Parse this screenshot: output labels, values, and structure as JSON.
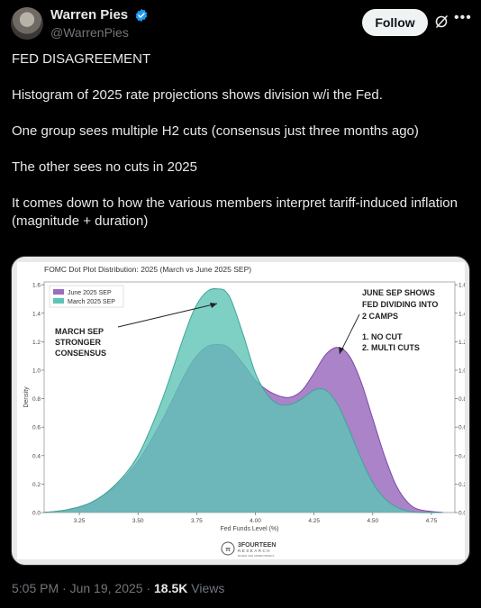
{
  "author": {
    "display_name": "Warren Pies",
    "handle": "@WarrenPies",
    "avatar_icon": "avatar-photo",
    "verified_icon": "verified-badge-icon"
  },
  "actions": {
    "follow_label": "Follow",
    "grok_icon": "grok-icon",
    "more_icon": "more-icon"
  },
  "tweet": {
    "lines": [
      "FED DISAGREEMENT",
      "Histogram of 2025 rate projections shows division w/i the Fed.",
      "One group sees multiple H2 cuts (consensus just three months ago)",
      "The other sees no cuts in 2025",
      "It comes down to how the various members interpret tariff-induced inflation (magnitude + duration)"
    ]
  },
  "footer": {
    "time": "5:05 PM",
    "date": "Jun 19, 2025",
    "separator": "·",
    "views_count": "18.5K",
    "views_label": "Views"
  },
  "chart_data": {
    "type": "area",
    "title": "FOMC Dot Plot Distribution: 2025 (March vs June 2025 SEP)",
    "xlabel": "Fed Funds Level (%)",
    "ylabel": "Density",
    "xlim": [
      3.1,
      4.85
    ],
    "ylim": [
      0,
      1.62
    ],
    "x_ticks": [
      "3.25",
      "3.50",
      "3.75",
      "4.00",
      "4.25",
      "4.50",
      "4.75"
    ],
    "y_ticks": [
      "0.0",
      "0.2",
      "0.4",
      "0.6",
      "0.8",
      "1.0",
      "1.2",
      "1.4",
      "1.6"
    ],
    "legend_position": "top-left",
    "series": [
      {
        "name": "June 2025 SEP",
        "color": "#9b6dc0",
        "x": [
          3.1,
          3.2,
          3.3,
          3.4,
          3.5,
          3.6,
          3.7,
          3.75,
          3.8,
          3.85,
          3.875,
          3.9,
          3.95,
          4.0,
          4.05,
          4.1,
          4.15,
          4.2,
          4.25,
          4.3,
          4.35,
          4.4,
          4.45,
          4.5,
          4.55,
          4.6,
          4.65,
          4.7,
          4.8
        ],
        "values": [
          0.0,
          0.02,
          0.07,
          0.18,
          0.36,
          0.64,
          0.97,
          1.1,
          1.17,
          1.18,
          1.17,
          1.14,
          1.04,
          0.93,
          0.86,
          0.82,
          0.81,
          0.86,
          0.98,
          1.11,
          1.16,
          1.1,
          0.92,
          0.66,
          0.4,
          0.19,
          0.07,
          0.02,
          0.0
        ]
      },
      {
        "name": "March 2025 SEP",
        "color": "#5ec4b6",
        "x": [
          3.1,
          3.2,
          3.3,
          3.4,
          3.5,
          3.6,
          3.7,
          3.75,
          3.8,
          3.85,
          3.875,
          3.9,
          3.95,
          4.0,
          4.05,
          4.1,
          4.15,
          4.2,
          4.25,
          4.3,
          4.35,
          4.4,
          4.45,
          4.5,
          4.55,
          4.6,
          4.65,
          4.7,
          4.8
        ],
        "values": [
          0.0,
          0.02,
          0.07,
          0.19,
          0.4,
          0.78,
          1.26,
          1.46,
          1.56,
          1.57,
          1.55,
          1.48,
          1.24,
          0.98,
          0.83,
          0.76,
          0.76,
          0.8,
          0.86,
          0.86,
          0.76,
          0.58,
          0.38,
          0.21,
          0.1,
          0.04,
          0.01,
          0.0,
          0.0
        ]
      }
    ],
    "annotations": [
      {
        "lines": [
          "MARCH SEP",
          "STRONGER",
          "CONSENSUS"
        ]
      },
      {
        "lines": [
          "JUNE SEP SHOWS",
          "FED DIVIDING INTO",
          "2 CAMPS"
        ]
      },
      {
        "lines": [
          "1.  NO CUT",
          "2.  MULTI CUTS"
        ]
      }
    ],
    "watermark": {
      "name": "3FOURTEEN",
      "sub": "RESEARCH",
      "tagline": "BASED AND ARMED BRIEFS"
    }
  }
}
